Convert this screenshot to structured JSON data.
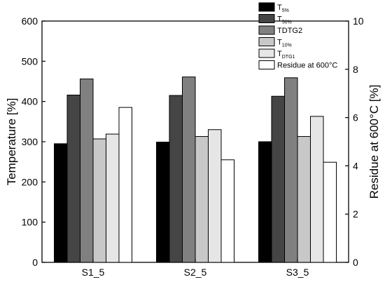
{
  "chart_data": {
    "type": "bar",
    "categories": [
      "S1_5",
      "S2_5",
      "S3_5"
    ],
    "ylabel": "Temperature [%]",
    "y2label": "Residue at 600°C [%]",
    "ylim": [
      0,
      600
    ],
    "y2lim": [
      0,
      10
    ],
    "yticks": [
      0,
      100,
      200,
      300,
      400,
      500,
      600
    ],
    "y2ticks": [
      0,
      2,
      4,
      6,
      8,
      10
    ],
    "grid": false,
    "legend_position": "top-right",
    "series": [
      {
        "legend_main": "T",
        "legend_sub": "5%",
        "axis": "left",
        "color": "#000000",
        "values": [
          295,
          299,
          300
        ]
      },
      {
        "legend_main": "T",
        "legend_sub": "50%",
        "axis": "left",
        "color": "#454545",
        "values": [
          416,
          415,
          413
        ]
      },
      {
        "legend_main": "TDTG2",
        "legend_sub": "",
        "axis": "left",
        "color": "#808080",
        "values": [
          456,
          461,
          459
        ]
      },
      {
        "legend_main": "T",
        "legend_sub": "10%",
        "axis": "left",
        "color": "#c8c8c8",
        "values": [
          307,
          313,
          313
        ]
      },
      {
        "legend_main": "T",
        "legend_sub": "DTG1",
        "axis": "left",
        "color": "#e6e6e6",
        "values": [
          319,
          330,
          363
        ]
      },
      {
        "legend_main": "Residue at 600°C",
        "legend_sub": "",
        "axis": "right",
        "color": "#ffffff",
        "values": [
          6.42,
          4.25,
          4.15
        ]
      }
    ]
  }
}
